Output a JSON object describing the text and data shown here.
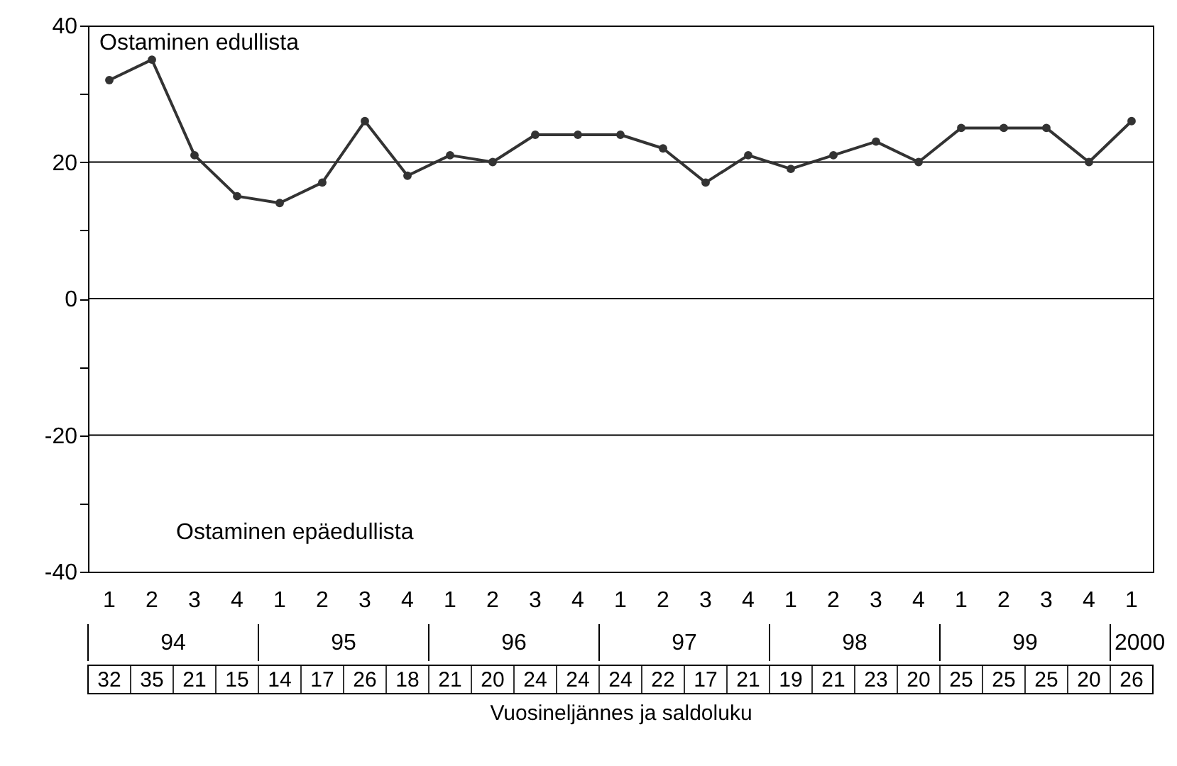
{
  "chart_data": {
    "type": "line",
    "categories": [
      "1",
      "2",
      "3",
      "4",
      "1",
      "2",
      "3",
      "4",
      "1",
      "2",
      "3",
      "4",
      "1",
      "2",
      "3",
      "4",
      "1",
      "2",
      "3",
      "4",
      "1",
      "2",
      "3",
      "4",
      "1"
    ],
    "values": [
      32,
      35,
      21,
      15,
      14,
      17,
      26,
      18,
      21,
      20,
      24,
      24,
      24,
      22,
      17,
      21,
      19,
      21,
      23,
      20,
      25,
      25,
      25,
      20,
      26
    ],
    "color": "#333333",
    "ylim": [
      -40,
      40
    ],
    "yticks": [
      -40,
      {
        "value": -30,
        "label": null
      },
      -20,
      {
        "value": -10,
        "label": null
      },
      0,
      {
        "value": 10,
        "label": null
      },
      20,
      {
        "value": 30,
        "label": null
      },
      40
    ],
    "grid": "y",
    "marker": "circle",
    "line_style": "solid",
    "data_labels": true,
    "xlabel": "Vuosineljännes ja saldoluku",
    "annotations": [
      "Ostaminen edullista",
      "Ostaminen epäedullista",
      "94",
      "95",
      "96",
      "97",
      "98",
      "99",
      "2000"
    ]
  }
}
